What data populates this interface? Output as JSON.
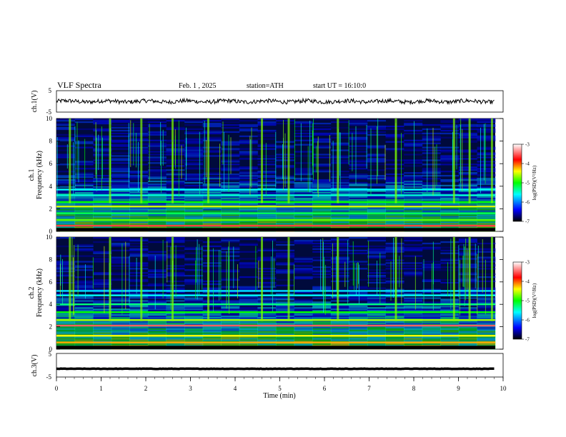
{
  "header": {
    "title": "VLF Spectra",
    "date": "Feb. 1 , 2025",
    "station": "station=ATH",
    "start": "start UT = 16:10:0"
  },
  "colors": {
    "spectrogram_background": "#000a3c",
    "waveform": "#000000",
    "colormap": [
      "#000000",
      "#0000ff",
      "#00ffff",
      "#00ff00",
      "#ffff00",
      "#ff0000",
      "#ffffff"
    ]
  },
  "chart_data": [
    {
      "type": "line",
      "name": "ch1-waveform",
      "ylabel": "ch.1(V)",
      "ylim": [
        -5,
        5
      ],
      "yticks": [
        "5",
        "-5"
      ],
      "xlim": [
        0,
        10
      ],
      "note_values": {
        "mean": 0,
        "amplitude_approx": 1.2
      }
    },
    {
      "type": "heatmap",
      "name": "ch1-spectrogram",
      "ylabel_line1": "ch.1",
      "ylabel_line2": "Frequency (kHz)",
      "ylim": [
        0,
        10
      ],
      "yticks": [
        "0",
        "2",
        "4",
        "6",
        "8",
        "10"
      ],
      "xlim": [
        0,
        10
      ],
      "bands_khz": [
        {
          "f": 0.5,
          "level": -3.6
        },
        {
          "f": 1.0,
          "level": -4.8
        },
        {
          "f": 1.6,
          "level": -5.2
        },
        {
          "f": 2.2,
          "level": -4.5
        },
        {
          "f": 2.6,
          "level": -5.0
        },
        {
          "f": 3.2,
          "level": -5.5
        },
        {
          "f": 3.7,
          "level": -5.6
        }
      ],
      "events_min": [
        0.3,
        1.2,
        1.9,
        2.6,
        3.4,
        4.6,
        5.2,
        6.3,
        7.6,
        8.9,
        9.25,
        9.75
      ],
      "colorbar": {
        "label": "log(PSD)(V²/Hz)",
        "ticks": [
          "-3",
          "-4",
          "-5",
          "-6",
          "-7"
        ],
        "range": [
          -7,
          -3
        ]
      }
    },
    {
      "type": "heatmap",
      "name": "ch2-spectrogram",
      "ylabel_line1": "ch.2",
      "ylabel_line2": "Frequency (kHz)",
      "ylim": [
        0,
        10
      ],
      "yticks": [
        "0",
        "2",
        "4",
        "6",
        "8",
        "10"
      ],
      "xlim": [
        0,
        10
      ],
      "bands_khz": [
        {
          "f": 0.6,
          "level": -4.2
        },
        {
          "f": 1.2,
          "level": -4.4
        },
        {
          "f": 2.1,
          "level": -3.5
        },
        {
          "f": 2.6,
          "level": -4.6
        },
        {
          "f": 3.3,
          "level": -5.0
        },
        {
          "f": 4.0,
          "level": -5.3
        },
        {
          "f": 4.8,
          "level": -5.6
        },
        {
          "f": 5.2,
          "level": -5.7
        }
      ],
      "events_min": [
        0.3,
        1.2,
        1.9,
        2.6,
        3.4,
        4.6,
        5.2,
        6.3,
        7.6,
        8.9,
        9.25,
        9.75
      ],
      "colorbar": {
        "label": "log(PSD)(V²/Hz)",
        "ticks": [
          "-3",
          "-4",
          "-5",
          "-6",
          "-7"
        ],
        "range": [
          -7,
          -3
        ]
      }
    },
    {
      "type": "line",
      "name": "ch3-waveform",
      "ylabel": "ch.3(V)",
      "ylim": [
        -5,
        5
      ],
      "yticks": [
        "5",
        "-5"
      ],
      "xlim": [
        0,
        10
      ],
      "xlabel": "Time (min)",
      "xticks": [
        "0",
        "1",
        "2",
        "3",
        "4",
        "5",
        "6",
        "7",
        "8",
        "9",
        "10"
      ],
      "note_values": {
        "mean": -1.5,
        "amplitude_approx": 0.15
      }
    }
  ]
}
